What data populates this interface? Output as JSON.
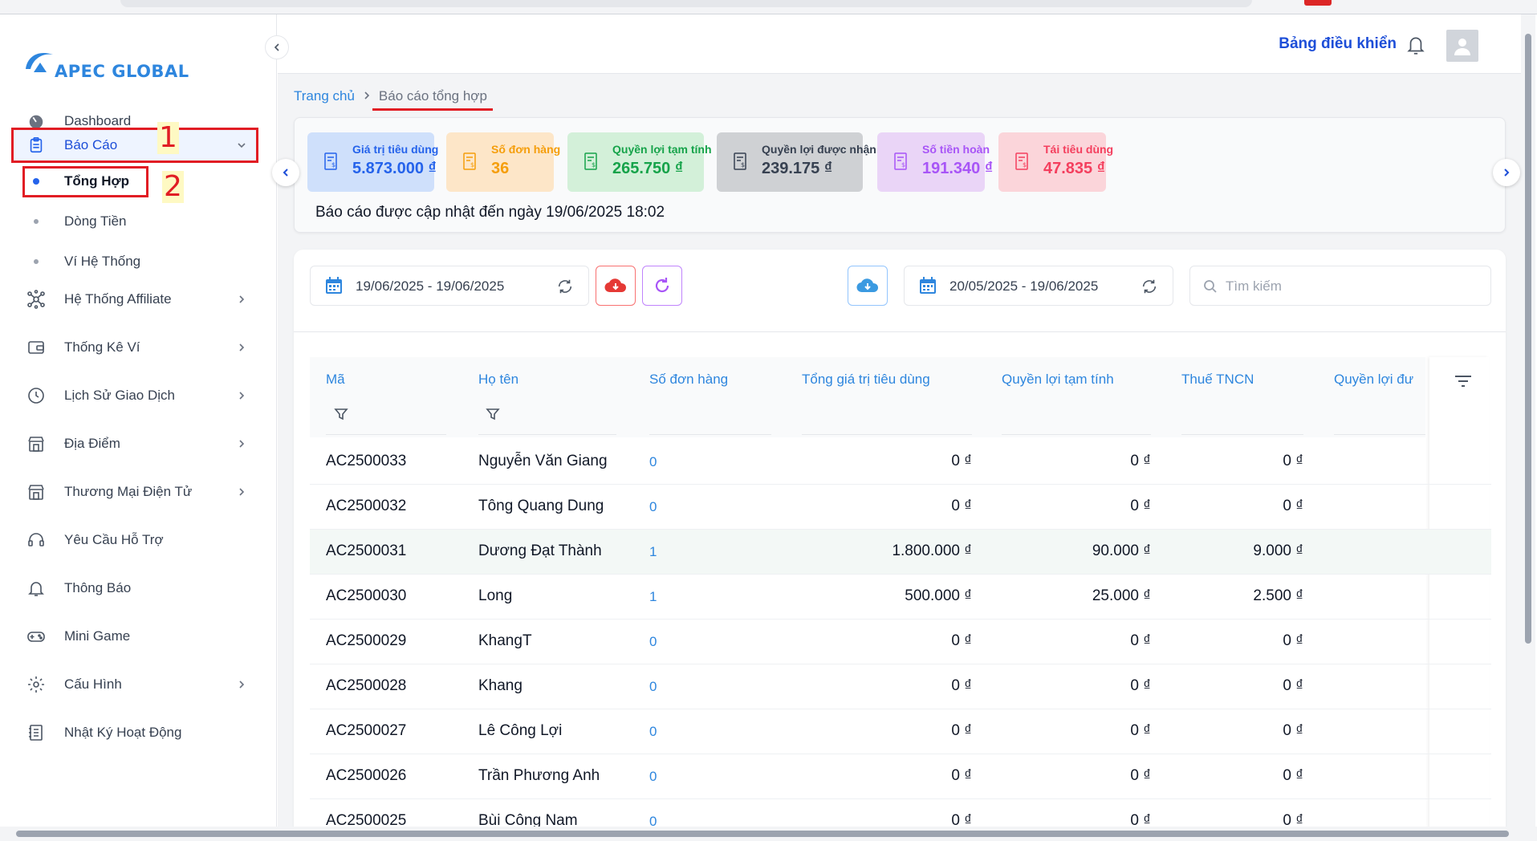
{
  "brand": {
    "name": "APEC GLOBAL"
  },
  "sidebar": {
    "items": [
      {
        "label": "Dashboard"
      },
      {
        "label": "Báo Cáo"
      },
      {
        "label": "Hệ Thống Affiliate"
      },
      {
        "label": "Thống Kê Ví"
      },
      {
        "label": "Lịch Sử Giao Dịch"
      },
      {
        "label": "Địa Điểm"
      },
      {
        "label": "Thương Mại Điện Tử"
      },
      {
        "label": "Yêu Cầu Hỗ Trợ"
      },
      {
        "label": "Thông Báo"
      },
      {
        "label": "Mini Game"
      },
      {
        "label": "Cấu Hình"
      },
      {
        "label": "Nhật Ký Hoạt Động"
      }
    ],
    "sub_items": [
      {
        "label": "Tổng Hợp"
      },
      {
        "label": "Dòng Tiền"
      },
      {
        "label": "Ví Hệ Thống"
      }
    ]
  },
  "annotations": {
    "marker_1": "1",
    "marker_2": "2",
    "color": "#e11d24"
  },
  "header": {
    "title": "Bảng điều khiển"
  },
  "breadcrumb": {
    "home": "Trang chủ",
    "current": "Báo cáo tổng hợp"
  },
  "stats": {
    "cards": [
      {
        "label": "Giá trị tiêu dùng",
        "value": "5.873.000 ₫",
        "color": "#2563eb",
        "bg": "#cfe0fb"
      },
      {
        "label": "Số đơn hàng",
        "value": "36",
        "color": "#f59e0b",
        "bg": "#fde6c8"
      },
      {
        "label": "Quyền lợi tạm tính",
        "value": "265.750 ₫",
        "color": "#16a34a",
        "bg": "#d3f0d9"
      },
      {
        "label": "Quyền lợi được nhận",
        "value": "239.175 ₫",
        "color": "#374151",
        "bg": "#cfd1d4"
      },
      {
        "label": "Số tiền hoàn",
        "value": "191.340 ₫",
        "color": "#a855f7",
        "bg": "#ead5f7"
      },
      {
        "label": "Tái tiêu dùng",
        "value": "47.835 ₫",
        "color": "#f43f5e",
        "bg": "#fbd5da"
      }
    ],
    "note": "Báo cáo được cập nhật đến ngày 19/06/2025 18:02"
  },
  "toolbar": {
    "date_range_1": "19/06/2025 - 19/06/2025",
    "date_range_2": "20/05/2025 - 19/06/2025",
    "search_placeholder": "Tìm kiếm"
  },
  "table": {
    "columns": [
      "Mã",
      "Họ tên",
      "Số đơn hàng",
      "Tổng giá trị tiêu dùng",
      "Quyền lợi tạm tính",
      "Thuế TNCN",
      "Quyền lợi đư"
    ],
    "rows": [
      {
        "code": "AC2500033",
        "name": "Nguyễn Văn Giang",
        "orders": "0",
        "total": "0 ₫",
        "benefit": "0 ₫",
        "tax": "0 ₫"
      },
      {
        "code": "AC2500032",
        "name": "Tông Quang Dung",
        "orders": "0",
        "total": "0 ₫",
        "benefit": "0 ₫",
        "tax": "0 ₫"
      },
      {
        "code": "AC2500031",
        "name": "Dương Đạt Thành",
        "orders": "1",
        "total": "1.800.000 ₫",
        "benefit": "90.000 ₫",
        "tax": "9.000 ₫"
      },
      {
        "code": "AC2500030",
        "name": "Long",
        "orders": "1",
        "total": "500.000 ₫",
        "benefit": "25.000 ₫",
        "tax": "2.500 ₫"
      },
      {
        "code": "AC2500029",
        "name": "KhangT",
        "orders": "0",
        "total": "0 ₫",
        "benefit": "0 ₫",
        "tax": "0 ₫"
      },
      {
        "code": "AC2500028",
        "name": "Khang",
        "orders": "0",
        "total": "0 ₫",
        "benefit": "0 ₫",
        "tax": "0 ₫"
      },
      {
        "code": "AC2500027",
        "name": "Lê Công Lợi",
        "orders": "0",
        "total": "0 ₫",
        "benefit": "0 ₫",
        "tax": "0 ₫"
      },
      {
        "code": "AC2500026",
        "name": "Trần Phương Anh",
        "orders": "0",
        "total": "0 ₫",
        "benefit": "0 ₫",
        "tax": "0 ₫"
      },
      {
        "code": "AC2500025",
        "name": "Bùi Công Nam",
        "orders": "0",
        "total": "0 ₫",
        "benefit": "0 ₫",
        "tax": "0 ₫"
      }
    ]
  },
  "colors": {
    "accent": "#2e86de",
    "download_red": "#e53935",
    "refresh_purple": "#a855f7",
    "cloud_blue": "#3b9ae1"
  }
}
